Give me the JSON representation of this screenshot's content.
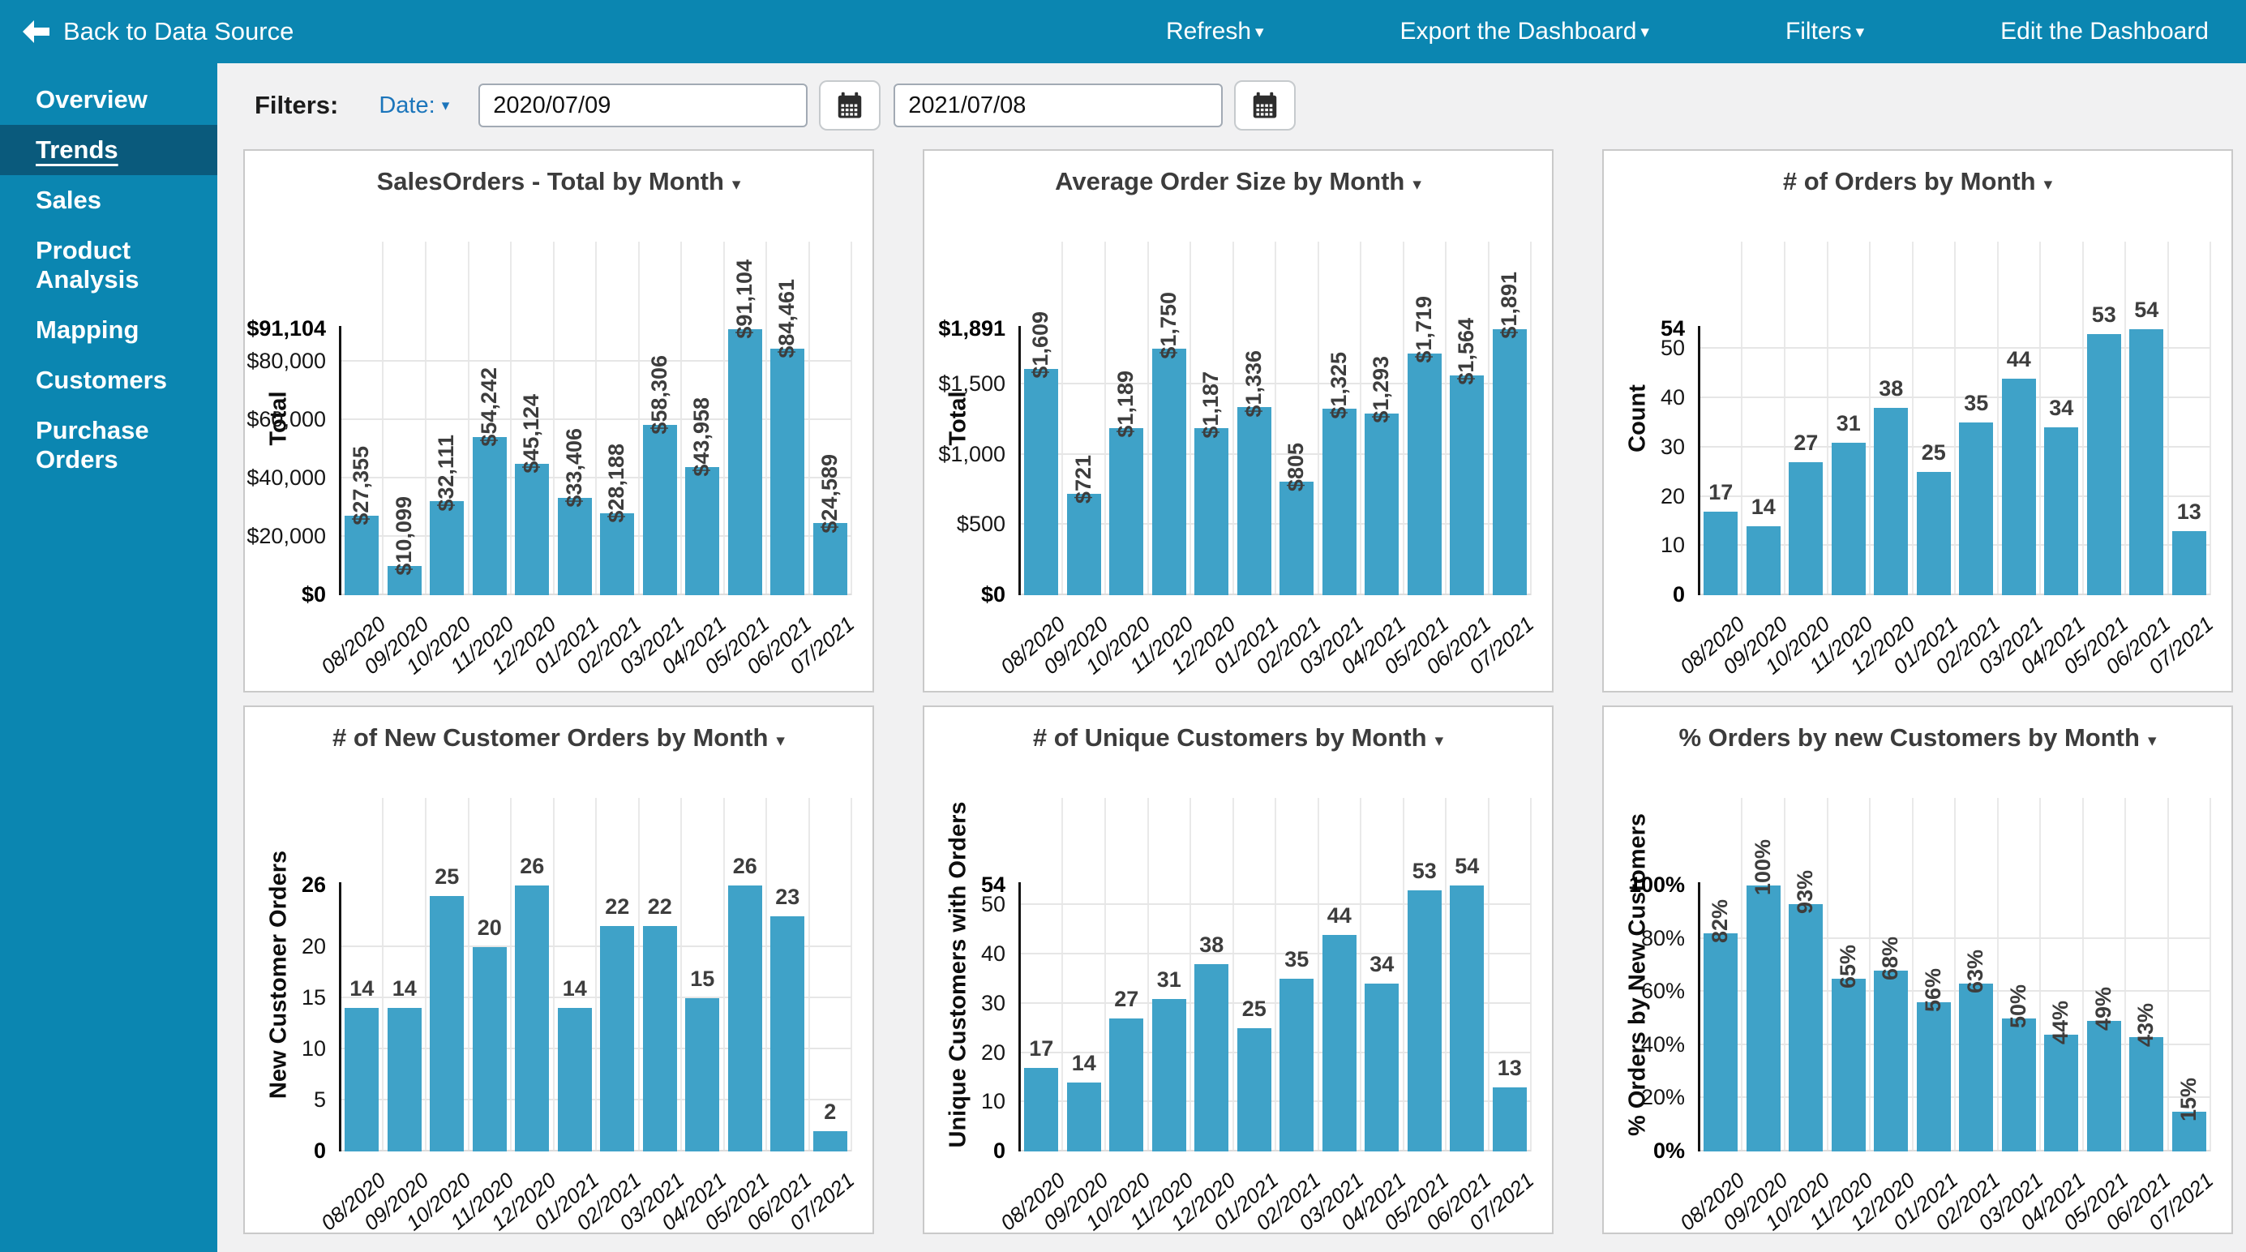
{
  "topbar": {
    "back_label": "Back to Data Source",
    "items": [
      {
        "label": "Refresh",
        "has_caret": true
      },
      {
        "label": "Export the Dashboard",
        "has_caret": true
      },
      {
        "label": "Filters",
        "has_caret": true
      },
      {
        "label": "Edit the Dashboard",
        "has_caret": false
      }
    ]
  },
  "sidebar": {
    "items": [
      {
        "label": "Overview",
        "active": false
      },
      {
        "label": "Trends",
        "active": true
      },
      {
        "label": "Sales",
        "active": false
      },
      {
        "label": "Product Analysis",
        "active": false
      },
      {
        "label": "Mapping",
        "active": false
      },
      {
        "label": "Customers",
        "active": false
      },
      {
        "label": "Purchase Orders",
        "active": false
      }
    ]
  },
  "filters": {
    "label": "Filters:",
    "date_label": "Date:",
    "start_date": "2020/07/09",
    "end_date": "2021/07/08"
  },
  "colors": {
    "topbar_teal": "#0b86b1",
    "active_item_teal": "#0a5a7c",
    "bar_fill": "#3fa2c8",
    "link_blue": "#1b75bb",
    "page_background": "#f1f1f2"
  },
  "chart_data": [
    {
      "id": "sales-orders-total",
      "type": "bar",
      "title": "SalesOrders - Total by Month",
      "ylabel": "Total",
      "label_orientation": "vertical",
      "categories": [
        "08/2020",
        "09/2020",
        "10/2020",
        "11/2020",
        "12/2020",
        "01/2021",
        "02/2021",
        "03/2021",
        "04/2021",
        "05/2021",
        "06/2021",
        "07/2021"
      ],
      "values": [
        27355,
        10099,
        32111,
        54242,
        45124,
        33406,
        28188,
        58306,
        43958,
        91104,
        84461,
        24589
      ],
      "value_labels": [
        "$27,355",
        "$10,099",
        "$32,111",
        "$54,242",
        "$45,124",
        "$33,406",
        "$28,188",
        "$58,306",
        "$43,958",
        "$91,104",
        "$84,461",
        "$24,589"
      ],
      "ymax": 91104,
      "yticks": [
        {
          "value": 91104,
          "label": "$91,104",
          "bold": true
        },
        {
          "value": 80000,
          "label": "$80,000",
          "bold": false
        },
        {
          "value": 60000,
          "label": "$60,000",
          "bold": false
        },
        {
          "value": 40000,
          "label": "$40,000",
          "bold": false
        },
        {
          "value": 20000,
          "label": "$20,000",
          "bold": false
        },
        {
          "value": 0,
          "label": "$0",
          "bold": true
        }
      ]
    },
    {
      "id": "average-order-size",
      "type": "bar",
      "title": "Average Order Size by Month",
      "ylabel": "Total",
      "label_orientation": "vertical",
      "categories": [
        "08/2020",
        "09/2020",
        "10/2020",
        "11/2020",
        "12/2020",
        "01/2021",
        "02/2021",
        "03/2021",
        "04/2021",
        "05/2021",
        "06/2021",
        "07/2021"
      ],
      "values": [
        1609,
        721,
        1189,
        1750,
        1187,
        1336,
        805,
        1325,
        1293,
        1719,
        1564,
        1891
      ],
      "value_labels": [
        "$1,609",
        "$721",
        "$1,189",
        "$1,750",
        "$1,187",
        "$1,336",
        "$805",
        "$1,325",
        "$1,293",
        "$1,719",
        "$1,564",
        "$1,891"
      ],
      "ymax": 1891,
      "yticks": [
        {
          "value": 1891,
          "label": "$1,891",
          "bold": true
        },
        {
          "value": 1500,
          "label": "$1,500",
          "bold": false
        },
        {
          "value": 1000,
          "label": "$1,000",
          "bold": false
        },
        {
          "value": 500,
          "label": "$500",
          "bold": false
        },
        {
          "value": 0,
          "label": "$0",
          "bold": true
        }
      ]
    },
    {
      "id": "orders-count",
      "type": "bar",
      "title": "# of Orders by Month",
      "ylabel": "Count",
      "label_orientation": "horizontal",
      "categories": [
        "08/2020",
        "09/2020",
        "10/2020",
        "11/2020",
        "12/2020",
        "01/2021",
        "02/2021",
        "03/2021",
        "04/2021",
        "05/2021",
        "06/2021",
        "07/2021"
      ],
      "values": [
        17,
        14,
        27,
        31,
        38,
        25,
        35,
        44,
        34,
        53,
        54,
        13
      ],
      "value_labels": [
        "17",
        "14",
        "27",
        "31",
        "38",
        "25",
        "35",
        "44",
        "34",
        "53",
        "54",
        "13"
      ],
      "ymax": 54,
      "yticks": [
        {
          "value": 54,
          "label": "54",
          "bold": true
        },
        {
          "value": 50,
          "label": "50",
          "bold": false
        },
        {
          "value": 40,
          "label": "40",
          "bold": false
        },
        {
          "value": 30,
          "label": "30",
          "bold": false
        },
        {
          "value": 20,
          "label": "20",
          "bold": false
        },
        {
          "value": 10,
          "label": "10",
          "bold": false
        },
        {
          "value": 0,
          "label": "0",
          "bold": true
        }
      ]
    },
    {
      "id": "new-customer-orders",
      "type": "bar",
      "title": "# of New Customer Orders by Month",
      "ylabel": "New Customer Orders",
      "label_orientation": "horizontal",
      "categories": [
        "08/2020",
        "09/2020",
        "10/2020",
        "11/2020",
        "12/2020",
        "01/2021",
        "02/2021",
        "03/2021",
        "04/2021",
        "05/2021",
        "06/2021",
        "07/2021"
      ],
      "values": [
        14,
        14,
        25,
        20,
        26,
        14,
        22,
        22,
        15,
        26,
        23,
        2
      ],
      "value_labels": [
        "14",
        "14",
        "25",
        "20",
        "26",
        "14",
        "22",
        "22",
        "15",
        "26",
        "23",
        "2"
      ],
      "ymax": 26,
      "yticks": [
        {
          "value": 26,
          "label": "26",
          "bold": true
        },
        {
          "value": 20,
          "label": "20",
          "bold": false
        },
        {
          "value": 15,
          "label": "15",
          "bold": false
        },
        {
          "value": 10,
          "label": "10",
          "bold": false
        },
        {
          "value": 5,
          "label": "5",
          "bold": false
        },
        {
          "value": 0,
          "label": "0",
          "bold": true
        }
      ]
    },
    {
      "id": "unique-customers",
      "type": "bar",
      "title": "# of Unique Customers by Month",
      "ylabel": "Unique Customers with Orders",
      "label_orientation": "horizontal",
      "categories": [
        "08/2020",
        "09/2020",
        "10/2020",
        "11/2020",
        "12/2020",
        "01/2021",
        "02/2021",
        "03/2021",
        "04/2021",
        "05/2021",
        "06/2021",
        "07/2021"
      ],
      "values": [
        17,
        14,
        27,
        31,
        38,
        25,
        35,
        44,
        34,
        53,
        54,
        13
      ],
      "value_labels": [
        "17",
        "14",
        "27",
        "31",
        "38",
        "25",
        "35",
        "44",
        "34",
        "53",
        "54",
        "13"
      ],
      "ymax": 54,
      "yticks": [
        {
          "value": 54,
          "label": "54",
          "bold": true
        },
        {
          "value": 50,
          "label": "50",
          "bold": false
        },
        {
          "value": 40,
          "label": "40",
          "bold": false
        },
        {
          "value": 30,
          "label": "30",
          "bold": false
        },
        {
          "value": 20,
          "label": "20",
          "bold": false
        },
        {
          "value": 10,
          "label": "10",
          "bold": false
        },
        {
          "value": 0,
          "label": "0",
          "bold": true
        }
      ]
    },
    {
      "id": "pct-orders-new-customers",
      "type": "bar",
      "title": "% Orders by new Customers by Month",
      "ylabel": "% Orders by New Customers",
      "label_orientation": "vertical",
      "categories": [
        "08/2020",
        "09/2020",
        "10/2020",
        "11/2020",
        "12/2020",
        "01/2021",
        "02/2021",
        "03/2021",
        "04/2021",
        "05/2021",
        "06/2021",
        "07/2021"
      ],
      "values": [
        82,
        100,
        93,
        65,
        68,
        56,
        63,
        50,
        44,
        49,
        43,
        15
      ],
      "value_labels": [
        "82%",
        "100%",
        "93%",
        "65%",
        "68%",
        "56%",
        "63%",
        "50%",
        "44%",
        "49%",
        "43%",
        "15%"
      ],
      "ymax": 100,
      "yticks": [
        {
          "value": 100,
          "label": "100%",
          "bold": true
        },
        {
          "value": 80,
          "label": "80%",
          "bold": false
        },
        {
          "value": 60,
          "label": "60%",
          "bold": false
        },
        {
          "value": 40,
          "label": "40%",
          "bold": false
        },
        {
          "value": 20,
          "label": "20%",
          "bold": false
        },
        {
          "value": 0,
          "label": "0%",
          "bold": true
        }
      ]
    }
  ]
}
